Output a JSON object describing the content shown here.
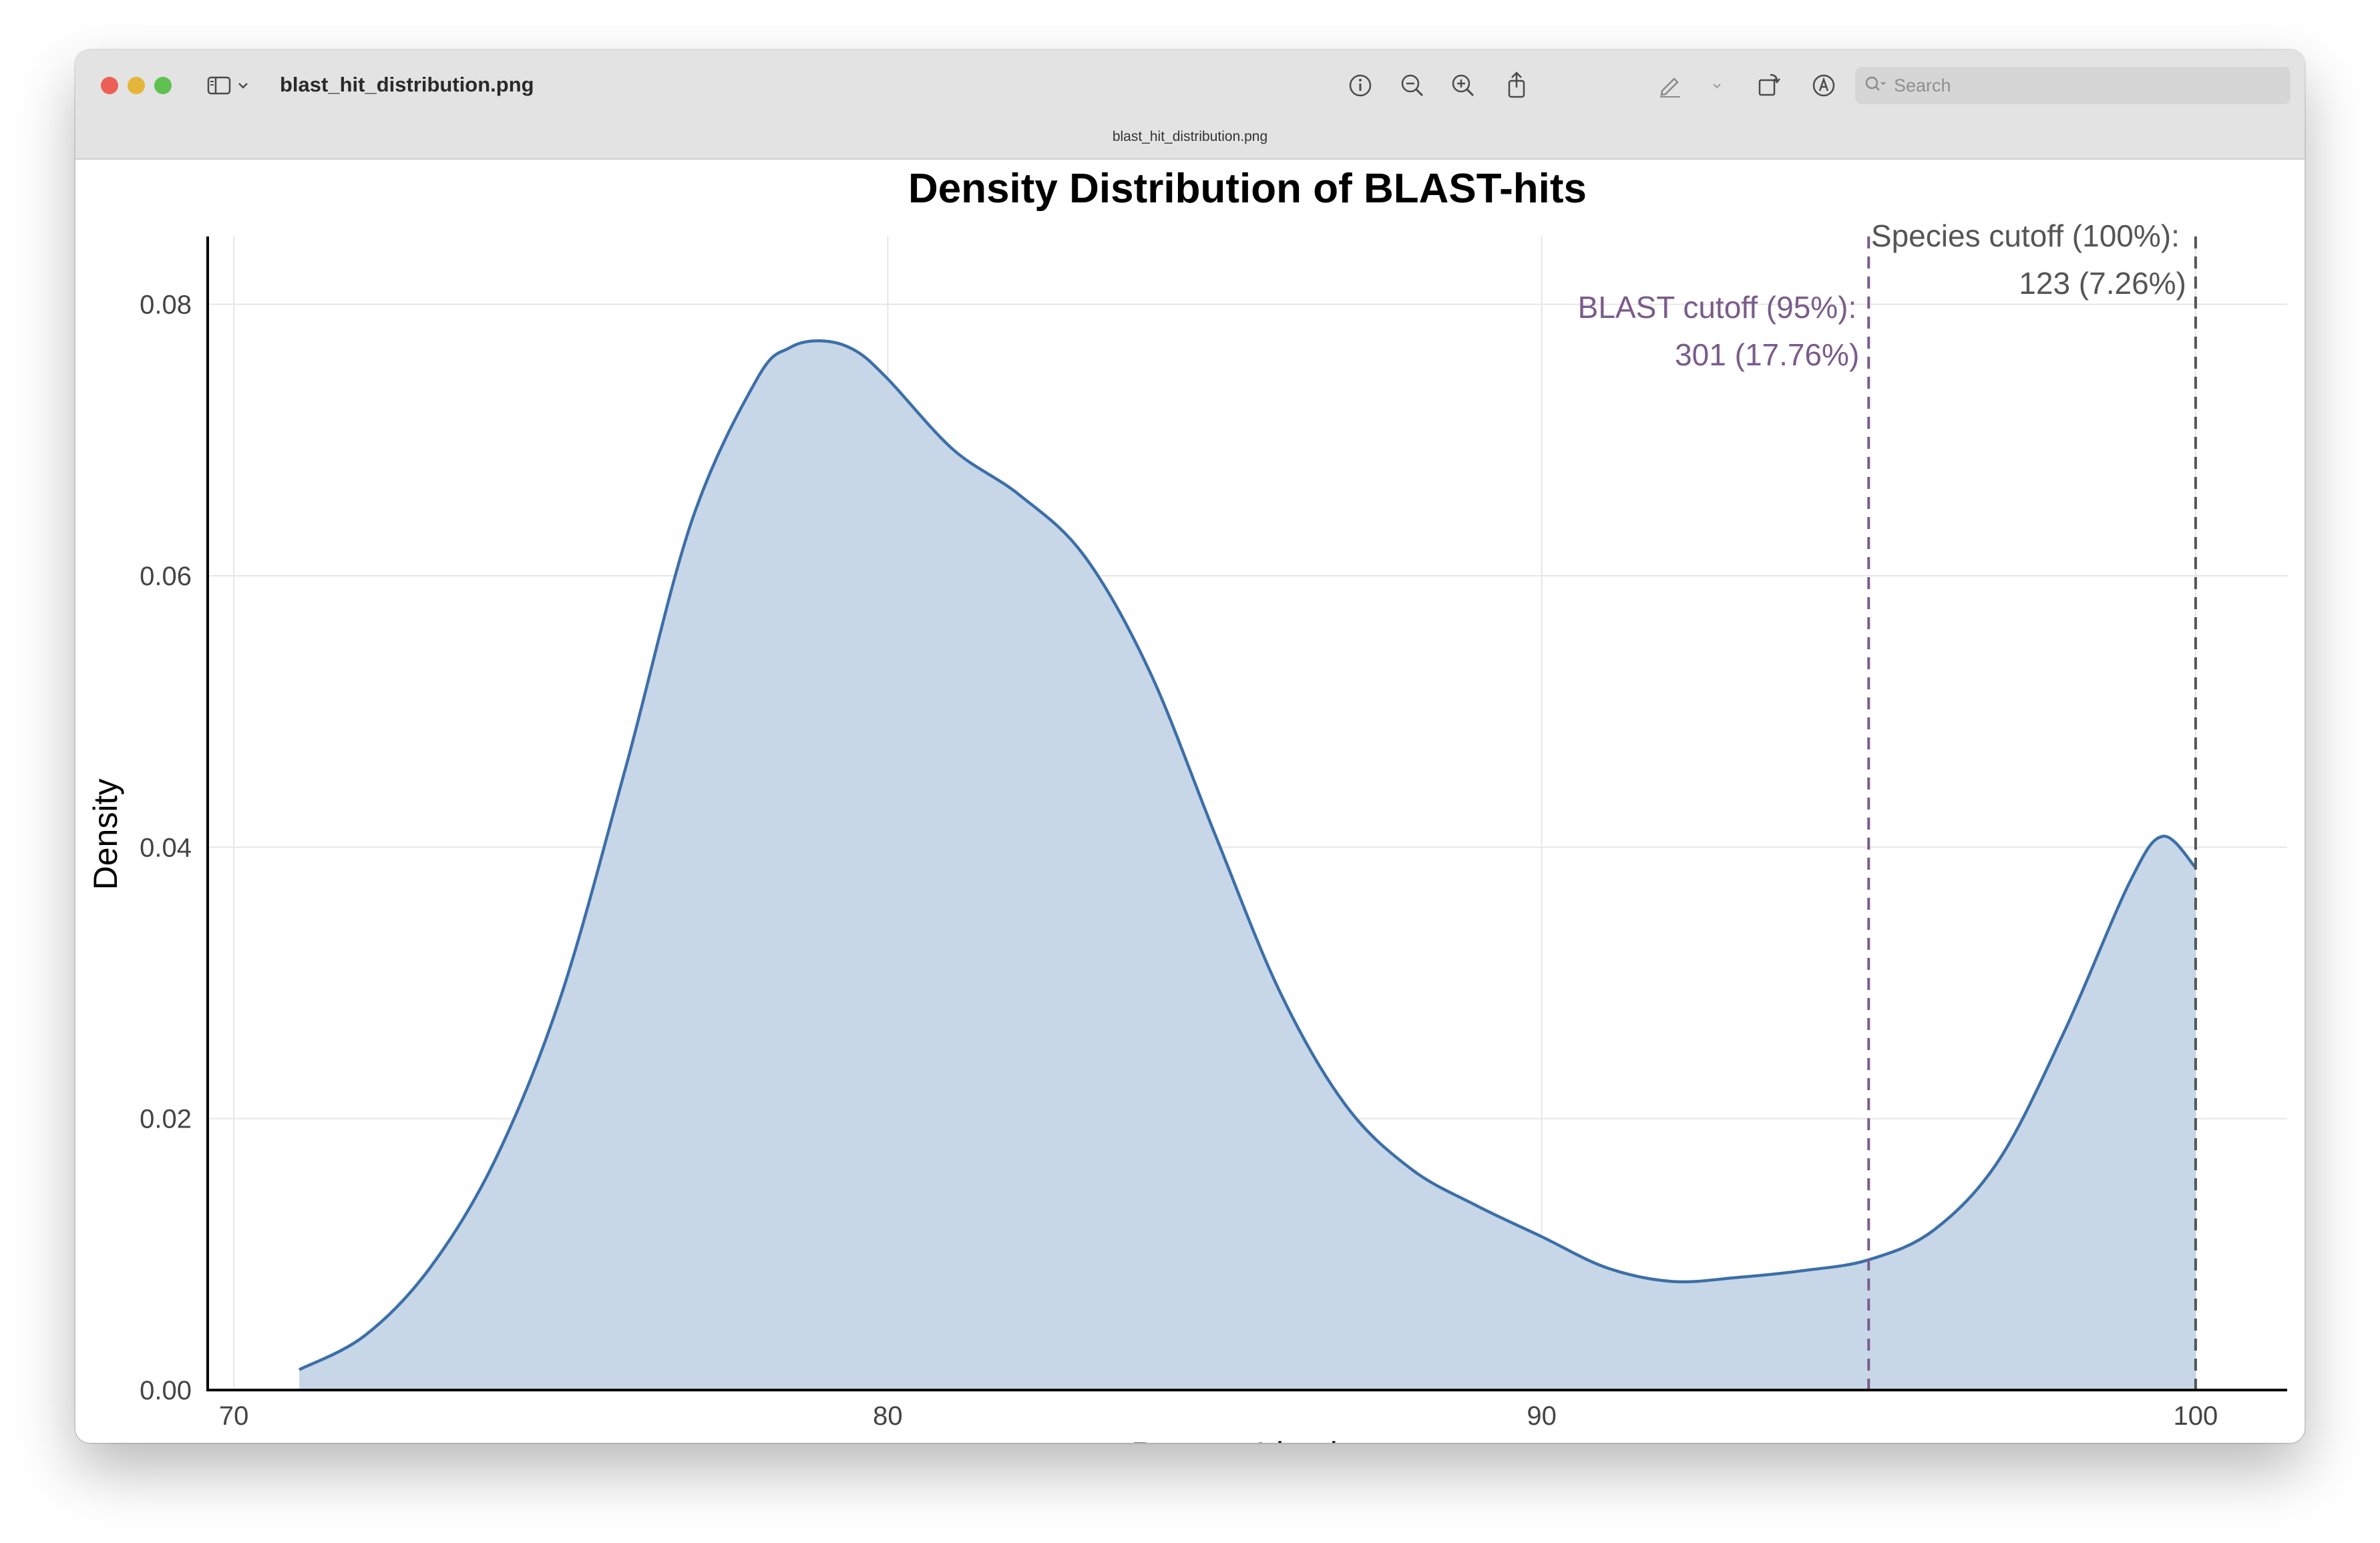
{
  "window": {
    "title": "blast_hit_distribution.png",
    "subtitle": "blast_hit_distribution.png"
  },
  "toolbar": {
    "icons": [
      "sidebar-icon",
      "chevron-down-icon",
      "info-icon",
      "zoom-out-icon",
      "zoom-in-icon",
      "share-icon",
      "markup-pen-icon",
      "chevron-down-icon",
      "rotate-icon",
      "annotate-icon",
      "signature-icon"
    ],
    "search_placeholder": "Search"
  },
  "colors": {
    "fill": "#c7d7e8",
    "line": "#3d6fa8",
    "blast_cutoff": "#7a5c8a",
    "species_cutoff": "#555555"
  },
  "chart_data": {
    "type": "area",
    "title": "Density Distribution of BLAST-hits",
    "xlabel": "Percent Identity",
    "ylabel": "Density",
    "xlim": [
      69.6,
      101.4
    ],
    "ylim": [
      0,
      0.085
    ],
    "xticks": [
      70,
      80,
      90,
      100
    ],
    "xtick_labels": [
      "70",
      "80",
      "90",
      "100"
    ],
    "yticks": [
      0,
      0.02,
      0.04,
      0.06,
      0.08
    ],
    "ytick_labels": [
      "0.00",
      "0.02",
      "0.04",
      "0.06",
      "0.08"
    ],
    "grid": true,
    "series": [
      {
        "x": [
          71.0,
          72.0,
          73.0,
          74.0,
          75.0,
          76.0,
          77.0,
          78.0,
          78.5,
          79.0,
          79.5,
          80.0,
          81.0,
          82.0,
          83.0,
          84.0,
          85.0,
          86.0,
          87.0,
          88.0,
          89.0,
          90.0,
          91.0,
          92.0,
          93.0,
          94.0,
          95.0,
          96.0,
          97.0,
          98.0,
          99.0,
          99.5,
          100.0
        ],
        "y": [
          0.0015,
          0.004,
          0.009,
          0.017,
          0.029,
          0.046,
          0.064,
          0.0745,
          0.0768,
          0.0773,
          0.0766,
          0.0745,
          0.0693,
          0.066,
          0.0615,
          0.053,
          0.041,
          0.0293,
          0.021,
          0.0163,
          0.0136,
          0.0113,
          0.009,
          0.008,
          0.0083,
          0.0088,
          0.0096,
          0.0118,
          0.017,
          0.0265,
          0.0375,
          0.0408,
          0.0385
        ]
      }
    ],
    "annotations": [
      {
        "x": 95,
        "line1": "BLAST cutoff (95%):",
        "line2": "301 (17.76%)"
      },
      {
        "x": 100,
        "line1": "Species cutoff (100%):",
        "line2": "123 (7.26%)"
      }
    ]
  }
}
